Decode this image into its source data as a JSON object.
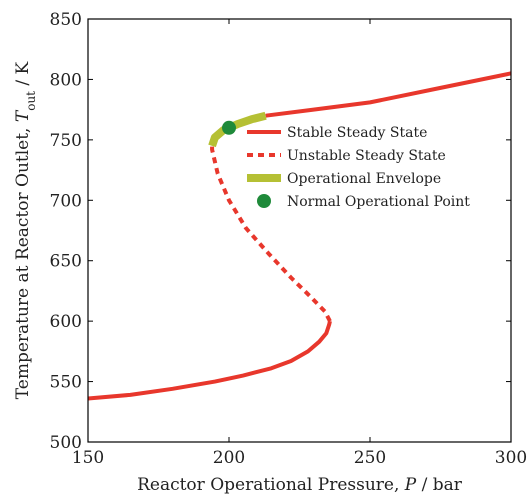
{
  "chart_data": {
    "type": "line",
    "xlabel": "Reactor Operational Pressure, P / bar",
    "ylabel": "Temperature at Reactor Outlet, T_out / K",
    "xlim": [
      150,
      300
    ],
    "ylim": [
      500,
      850
    ],
    "xticks": [
      150,
      200,
      250,
      300
    ],
    "yticks": [
      500,
      550,
      600,
      650,
      700,
      750,
      800,
      850
    ],
    "grid": false,
    "legend_position": "upper-right",
    "series": [
      {
        "name": "Stable Steady State",
        "style": "solid",
        "color": "#e8372c",
        "segments": [
          [
            [
              150,
              536
            ],
            [
              165,
              539
            ],
            [
              180,
              544
            ],
            [
              195,
              550
            ],
            [
              205,
              555
            ],
            [
              215,
              561
            ],
            [
              222,
              567
            ],
            [
              228,
              575
            ],
            [
              232,
              583
            ],
            [
              234.5,
              590
            ],
            [
              235.5,
              597
            ],
            [
              235.8,
              600
            ]
          ],
          [
            [
              213,
              770
            ],
            [
              230,
              775
            ],
            [
              250,
              781
            ],
            [
              275,
              793
            ],
            [
              300,
              805
            ]
          ]
        ]
      },
      {
        "name": "Unstable Steady State",
        "style": "dashed",
        "color": "#e8372c",
        "segments": [
          [
            [
              235.8,
              600
            ],
            [
              234,
              608
            ],
            [
              229,
              620
            ],
            [
              222,
              636
            ],
            [
              214,
              656
            ],
            [
              206,
              677
            ],
            [
              200,
              700
            ],
            [
              196,
              722
            ],
            [
              194,
              742
            ],
            [
              194,
              745
            ]
          ]
        ]
      },
      {
        "name": "Operational Envelope",
        "style": "thick",
        "color": "#b5c034",
        "segments": [
          [
            [
              194,
              745
            ],
            [
              195,
              752
            ],
            [
              198,
              758
            ],
            [
              203,
              763
            ],
            [
              208,
              767
            ],
            [
              213,
              770
            ]
          ]
        ]
      },
      {
        "name": "Normal Operational Point",
        "style": "marker",
        "color": "#1f8a3a",
        "points": [
          [
            200,
            760
          ]
        ]
      }
    ]
  }
}
